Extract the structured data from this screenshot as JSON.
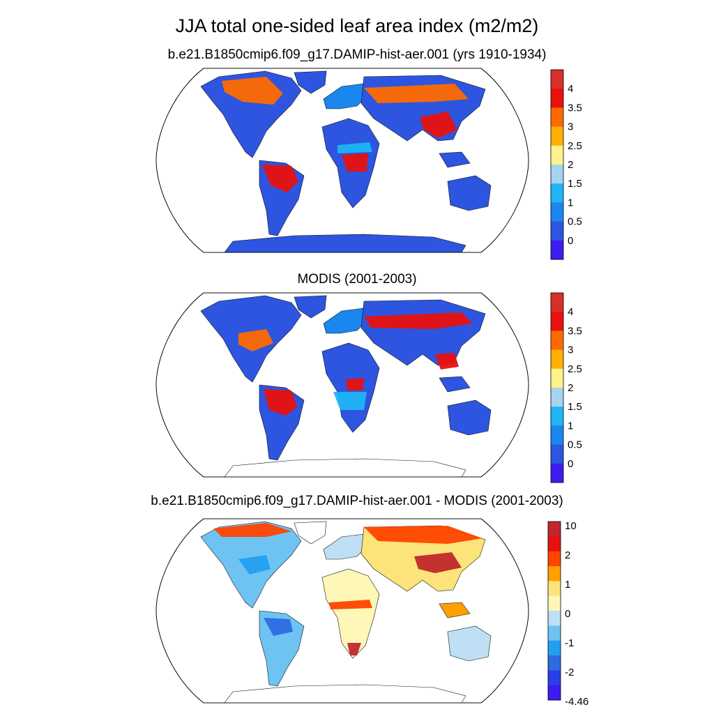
{
  "title": "JJA total one-sided leaf area index (m2/m2)",
  "panels": [
    {
      "title": "b.e21.B1850cmip6.f09_g17.DAMIP-hist-aer.001 (yrs 1910-1934)",
      "kind": "model",
      "colorbar": {
        "labels": [
          "4",
          "3.5",
          "3",
          "2.5",
          "2",
          "1.5",
          "1",
          "0.5",
          "0"
        ],
        "colors": [
          "#d73027",
          "#e8110e",
          "#ff6a00",
          "#ffb000",
          "#fff28a",
          "#a6d3f0",
          "#1fb4f5",
          "#1a86ee",
          "#2d55e0",
          "#3c1cf0"
        ]
      }
    },
    {
      "title": "MODIS (2001-2003)",
      "kind": "obs",
      "colorbar": {
        "labels": [
          "4",
          "3.5",
          "3",
          "2.5",
          "2",
          "1.5",
          "1",
          "0.5",
          "0"
        ],
        "colors": [
          "#d73027",
          "#e8110e",
          "#ff6a00",
          "#ffb000",
          "#fff28a",
          "#a6d3f0",
          "#1fb4f5",
          "#1a86ee",
          "#2d55e0",
          "#3c1cf0"
        ]
      }
    },
    {
      "title": "b.e21.B1850cmip6.f09_g17.DAMIP-hist-aer.001 - MODIS (2001-2003)",
      "kind": "diff",
      "colorbar": {
        "labels": [
          "10",
          "2",
          "1",
          "0",
          "-1",
          "-2",
          "-4.46"
        ],
        "colors": [
          "#c1272d",
          "#e8110e",
          "#ff4500",
          "#ffa000",
          "#fde47a",
          "#fff7b8",
          "#bfe0f4",
          "#6ec3f2",
          "#22a0f0",
          "#2d6be0",
          "#2a3fe6",
          "#3c1cf0"
        ]
      }
    }
  ]
}
